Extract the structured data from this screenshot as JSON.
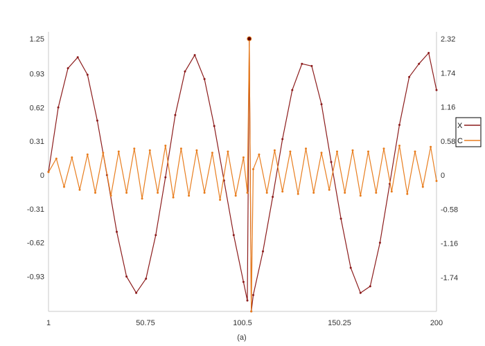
{
  "chart_data": {
    "type": "line",
    "caption": "(a)",
    "x_ticks": [
      "1",
      "50.75",
      "100.5",
      "150.25",
      "200"
    ],
    "x_range": [
      1,
      200
    ],
    "left_axis": {
      "ticks": [
        "1.25",
        "0.93",
        "0.62",
        "0.31",
        "0",
        "-0.31",
        "-0.62",
        "-0.93"
      ],
      "ylim": [
        -1.25,
        1.25
      ]
    },
    "right_axis": {
      "ticks": [
        "2.32",
        "1.74",
        "1.16",
        "0.58",
        "0",
        "-0.58",
        "-1.16",
        "-1.74"
      ],
      "ylim": [
        -2.32,
        2.32
      ]
    },
    "grid": false,
    "legend_position": "right",
    "series": [
      {
        "name": "X",
        "color": "#8b1a1a",
        "axis": "left",
        "description": "Periodic signal with period ~60, amplitude ~1.1, plus noise; spike at x≈104",
        "x": [
          1,
          6,
          11,
          16,
          21,
          26,
          31,
          36,
          41,
          46,
          51,
          56,
          61,
          66,
          71,
          76,
          81,
          86,
          91,
          96,
          101,
          103,
          104,
          105,
          106,
          111,
          116,
          121,
          126,
          131,
          136,
          141,
          146,
          151,
          156,
          161,
          166,
          171,
          176,
          181,
          186,
          191,
          196,
          200
        ],
        "y": [
          0.03,
          0.62,
          0.98,
          1.08,
          0.92,
          0.5,
          0.0,
          -0.52,
          -0.93,
          -1.08,
          -0.95,
          -0.55,
          -0.02,
          0.55,
          0.95,
          1.1,
          0.88,
          0.45,
          -0.05,
          -0.55,
          -0.98,
          -1.15,
          1.25,
          -1.25,
          -1.1,
          -0.7,
          -0.2,
          0.33,
          0.78,
          1.02,
          1.0,
          0.65,
          0.12,
          -0.4,
          -0.85,
          -1.08,
          -1.02,
          -0.62,
          -0.08,
          0.46,
          0.9,
          1.02,
          1.12,
          0.78
        ]
      },
      {
        "name": "C",
        "color": "#e87d1e",
        "axis": "right",
        "description": "Oscillating noise around 0, amplitude ~0.3-0.5 in right-axis units; spike at x≈104",
        "x": [
          1,
          5,
          9,
          13,
          17,
          21,
          25,
          29,
          33,
          37,
          41,
          45,
          49,
          53,
          57,
          61,
          65,
          69,
          73,
          77,
          81,
          85,
          89,
          93,
          97,
          101,
          103,
          104,
          105,
          106,
          109,
          113,
          117,
          121,
          125,
          129,
          133,
          137,
          141,
          145,
          149,
          153,
          157,
          161,
          165,
          169,
          173,
          177,
          181,
          185,
          189,
          193,
          197,
          200
        ],
        "y": [
          0.05,
          0.28,
          -0.2,
          0.3,
          -0.25,
          0.35,
          -0.3,
          0.38,
          -0.35,
          0.4,
          -0.3,
          0.45,
          -0.4,
          0.42,
          -0.3,
          0.5,
          -0.38,
          0.45,
          -0.35,
          0.42,
          -0.3,
          0.38,
          -0.42,
          0.4,
          -0.35,
          0.3,
          -0.3,
          2.32,
          -2.32,
          0.1,
          0.35,
          -0.3,
          0.42,
          -0.28,
          0.4,
          -0.32,
          0.45,
          -0.3,
          0.38,
          -0.25,
          0.4,
          -0.3,
          0.42,
          -0.35,
          0.4,
          -0.3,
          0.45,
          -0.28,
          0.5,
          -0.32,
          0.4,
          -0.2,
          0.48,
          -0.1
        ]
      }
    ]
  }
}
